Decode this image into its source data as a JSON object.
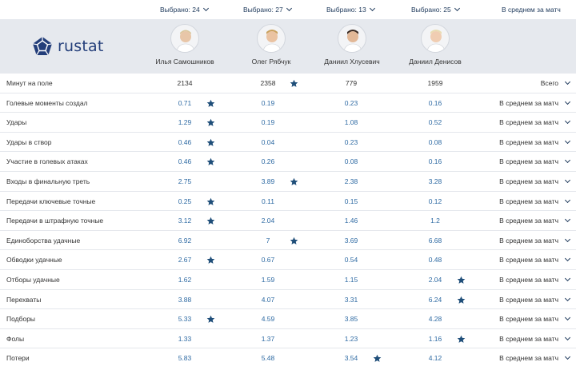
{
  "selectors": [
    {
      "label": "Выбрано: 24"
    },
    {
      "label": "Выбрано: 27"
    },
    {
      "label": "Выбрано: 13"
    },
    {
      "label": "Выбрано: 25"
    },
    {
      "label": "В среднем за матч"
    }
  ],
  "logo": {
    "text": "rustat"
  },
  "players": [
    {
      "name": "Илья Самошников"
    },
    {
      "name": "Олег Рябчук"
    },
    {
      "name": "Даниил Хлусевич"
    },
    {
      "name": "Даниил Денисов"
    }
  ],
  "colors": {
    "accent": "#1f4e79",
    "value": "#2e6aa3",
    "header_bg": "#e6e9ee"
  },
  "stats": [
    {
      "label": "Минут на поле",
      "values": [
        "2134",
        "2358",
        "779",
        "1959"
      ],
      "best": 1,
      "mode": "Всего"
    },
    {
      "label": "Голевые моменты создал",
      "values": [
        "0.71",
        "0.19",
        "0.23",
        "0.16"
      ],
      "best": 0,
      "mode": "В среднем за матч"
    },
    {
      "label": "Удары",
      "values": [
        "1.29",
        "0.19",
        "1.08",
        "0.52"
      ],
      "best": 0,
      "mode": "В среднем за матч"
    },
    {
      "label": "Удары в створ",
      "values": [
        "0.46",
        "0.04",
        "0.23",
        "0.08"
      ],
      "best": 0,
      "mode": "В среднем за матч"
    },
    {
      "label": "Участие в голевых атаках",
      "values": [
        "0.46",
        "0.26",
        "0.08",
        "0.16"
      ],
      "best": 0,
      "mode": "В среднем за матч"
    },
    {
      "label": "Входы в финальную треть",
      "values": [
        "2.75",
        "3.89",
        "2.38",
        "3.28"
      ],
      "best": 1,
      "mode": "В среднем за матч"
    },
    {
      "label": "Передачи ключевые точные",
      "values": [
        "0.25",
        "0.11",
        "0.15",
        "0.12"
      ],
      "best": 0,
      "mode": "В среднем за матч"
    },
    {
      "label": "Передачи в штрафную точные",
      "values": [
        "3.12",
        "2.04",
        "1.46",
        "1.2"
      ],
      "best": 0,
      "mode": "В среднем за матч"
    },
    {
      "label": "Единоборства удачные",
      "values": [
        "6.92",
        "7",
        "3.69",
        "6.68"
      ],
      "best": 1,
      "mode": "В среднем за матч"
    },
    {
      "label": "Обводки удачные",
      "values": [
        "2.67",
        "0.67",
        "0.54",
        "0.48"
      ],
      "best": 0,
      "mode": "В среднем за матч"
    },
    {
      "label": "Отборы удачные",
      "values": [
        "1.62",
        "1.59",
        "1.15",
        "2.04"
      ],
      "best": 3,
      "mode": "В среднем за матч"
    },
    {
      "label": "Перехваты",
      "values": [
        "3.88",
        "4.07",
        "3.31",
        "6.24"
      ],
      "best": 3,
      "mode": "В среднем за матч"
    },
    {
      "label": "Подборы",
      "values": [
        "5.33",
        "4.59",
        "3.85",
        "4.28"
      ],
      "best": 0,
      "mode": "В среднем за матч"
    },
    {
      "label": "Фолы",
      "values": [
        "1.33",
        "1.37",
        "1.23",
        "1.16"
      ],
      "best": 3,
      "mode": "В среднем за матч"
    },
    {
      "label": "Потери",
      "values": [
        "5.83",
        "5.48",
        "3.54",
        "4.12"
      ],
      "best": 2,
      "mode": "В среднем за матч"
    }
  ]
}
